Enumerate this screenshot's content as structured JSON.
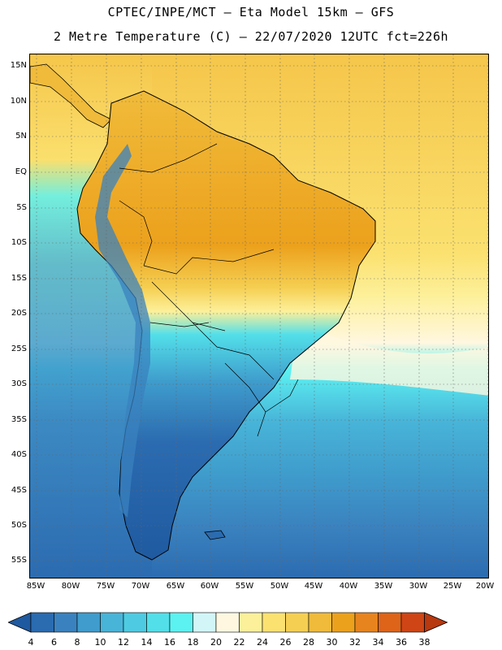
{
  "title": {
    "line1": "CPTEC/INPE/MCT –  Eta Model 15km – GFS",
    "line2": "2 Metre Temperature (C) – 22/07/2020 12UTC fct=226h"
  },
  "map": {
    "lat_labels": [
      "15N",
      "10N",
      "5N",
      "EQ",
      "5S",
      "10S",
      "15S",
      "20S",
      "25S",
      "30S",
      "35S",
      "40S",
      "45S",
      "50S",
      "55S"
    ],
    "lon_labels": [
      "85W",
      "80W",
      "75W",
      "70W",
      "65W",
      "60W",
      "55W",
      "50W",
      "45W",
      "40W",
      "35W",
      "30W",
      "25W",
      "20W"
    ]
  },
  "colorbar": {
    "labels": [
      "4",
      "6",
      "8",
      "10",
      "12",
      "14",
      "16",
      "18",
      "20",
      "22",
      "24",
      "26",
      "28",
      "30",
      "32",
      "34",
      "36",
      "38"
    ],
    "colors": [
      "#1f5aa0",
      "#2b6bb0",
      "#3a82bf",
      "#3f9ccc",
      "#48b4d8",
      "#4ecbe2",
      "#52dfe9",
      "#5cf2f2",
      "#d2f6f7",
      "#fff7e0",
      "#fdf09a",
      "#fbe170",
      "#f5cf52",
      "#f0bb3a",
      "#eca11c",
      "#e7841e",
      "#de641a",
      "#cf4515",
      "#b8380f"
    ]
  }
}
